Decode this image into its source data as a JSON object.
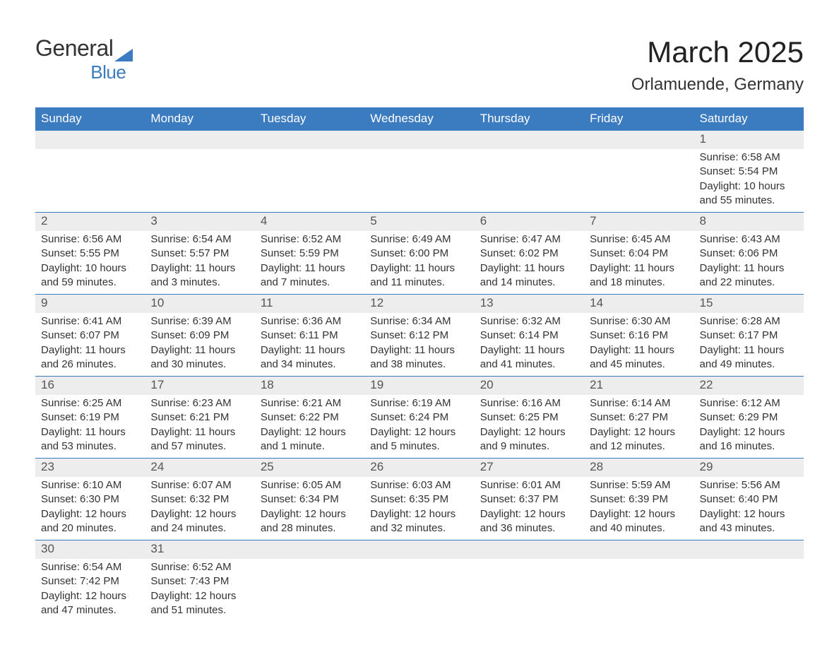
{
  "brand": {
    "general": "General",
    "blue": "Blue",
    "tri_color": "#3b7bbf"
  },
  "title": "March 2025",
  "location": "Orlamuende, Germany",
  "day_headers": [
    "Sunday",
    "Monday",
    "Tuesday",
    "Wednesday",
    "Thursday",
    "Friday",
    "Saturday"
  ],
  "colors": {
    "header_bg": "#3b7bbf",
    "header_fg": "#ffffff",
    "daynum_bg": "#ededed",
    "daynum_fg": "#555555",
    "row_divider": "#3b7bbf",
    "body_text": "#333333",
    "background": "#ffffff"
  },
  "typography": {
    "title_fontsize": 42,
    "location_fontsize": 24,
    "header_fontsize": 17,
    "daynum_fontsize": 17,
    "cell_fontsize": 15,
    "font_family": "Arial"
  },
  "layout": {
    "weeks": 6,
    "cols": 7,
    "first_day_col": 6,
    "last_date": 31
  },
  "labels": {
    "sunrise": "Sunrise:",
    "sunset": "Sunset:",
    "daylight": "Daylight:"
  },
  "days": [
    {
      "n": 1,
      "sunrise": "6:58 AM",
      "sunset": "5:54 PM",
      "daylight": "10 hours and 55 minutes."
    },
    {
      "n": 2,
      "sunrise": "6:56 AM",
      "sunset": "5:55 PM",
      "daylight": "10 hours and 59 minutes."
    },
    {
      "n": 3,
      "sunrise": "6:54 AM",
      "sunset": "5:57 PM",
      "daylight": "11 hours and 3 minutes."
    },
    {
      "n": 4,
      "sunrise": "6:52 AM",
      "sunset": "5:59 PM",
      "daylight": "11 hours and 7 minutes."
    },
    {
      "n": 5,
      "sunrise": "6:49 AM",
      "sunset": "6:00 PM",
      "daylight": "11 hours and 11 minutes."
    },
    {
      "n": 6,
      "sunrise": "6:47 AM",
      "sunset": "6:02 PM",
      "daylight": "11 hours and 14 minutes."
    },
    {
      "n": 7,
      "sunrise": "6:45 AM",
      "sunset": "6:04 PM",
      "daylight": "11 hours and 18 minutes."
    },
    {
      "n": 8,
      "sunrise": "6:43 AM",
      "sunset": "6:06 PM",
      "daylight": "11 hours and 22 minutes."
    },
    {
      "n": 9,
      "sunrise": "6:41 AM",
      "sunset": "6:07 PM",
      "daylight": "11 hours and 26 minutes."
    },
    {
      "n": 10,
      "sunrise": "6:39 AM",
      "sunset": "6:09 PM",
      "daylight": "11 hours and 30 minutes."
    },
    {
      "n": 11,
      "sunrise": "6:36 AM",
      "sunset": "6:11 PM",
      "daylight": "11 hours and 34 minutes."
    },
    {
      "n": 12,
      "sunrise": "6:34 AM",
      "sunset": "6:12 PM",
      "daylight": "11 hours and 38 minutes."
    },
    {
      "n": 13,
      "sunrise": "6:32 AM",
      "sunset": "6:14 PM",
      "daylight": "11 hours and 41 minutes."
    },
    {
      "n": 14,
      "sunrise": "6:30 AM",
      "sunset": "6:16 PM",
      "daylight": "11 hours and 45 minutes."
    },
    {
      "n": 15,
      "sunrise": "6:28 AM",
      "sunset": "6:17 PM",
      "daylight": "11 hours and 49 minutes."
    },
    {
      "n": 16,
      "sunrise": "6:25 AM",
      "sunset": "6:19 PM",
      "daylight": "11 hours and 53 minutes."
    },
    {
      "n": 17,
      "sunrise": "6:23 AM",
      "sunset": "6:21 PM",
      "daylight": "11 hours and 57 minutes."
    },
    {
      "n": 18,
      "sunrise": "6:21 AM",
      "sunset": "6:22 PM",
      "daylight": "12 hours and 1 minute."
    },
    {
      "n": 19,
      "sunrise": "6:19 AM",
      "sunset": "6:24 PM",
      "daylight": "12 hours and 5 minutes."
    },
    {
      "n": 20,
      "sunrise": "6:16 AM",
      "sunset": "6:25 PM",
      "daylight": "12 hours and 9 minutes."
    },
    {
      "n": 21,
      "sunrise": "6:14 AM",
      "sunset": "6:27 PM",
      "daylight": "12 hours and 12 minutes."
    },
    {
      "n": 22,
      "sunrise": "6:12 AM",
      "sunset": "6:29 PM",
      "daylight": "12 hours and 16 minutes."
    },
    {
      "n": 23,
      "sunrise": "6:10 AM",
      "sunset": "6:30 PM",
      "daylight": "12 hours and 20 minutes."
    },
    {
      "n": 24,
      "sunrise": "6:07 AM",
      "sunset": "6:32 PM",
      "daylight": "12 hours and 24 minutes."
    },
    {
      "n": 25,
      "sunrise": "6:05 AM",
      "sunset": "6:34 PM",
      "daylight": "12 hours and 28 minutes."
    },
    {
      "n": 26,
      "sunrise": "6:03 AM",
      "sunset": "6:35 PM",
      "daylight": "12 hours and 32 minutes."
    },
    {
      "n": 27,
      "sunrise": "6:01 AM",
      "sunset": "6:37 PM",
      "daylight": "12 hours and 36 minutes."
    },
    {
      "n": 28,
      "sunrise": "5:59 AM",
      "sunset": "6:39 PM",
      "daylight": "12 hours and 40 minutes."
    },
    {
      "n": 29,
      "sunrise": "5:56 AM",
      "sunset": "6:40 PM",
      "daylight": "12 hours and 43 minutes."
    },
    {
      "n": 30,
      "sunrise": "6:54 AM",
      "sunset": "7:42 PM",
      "daylight": "12 hours and 47 minutes."
    },
    {
      "n": 31,
      "sunrise": "6:52 AM",
      "sunset": "7:43 PM",
      "daylight": "12 hours and 51 minutes."
    }
  ]
}
